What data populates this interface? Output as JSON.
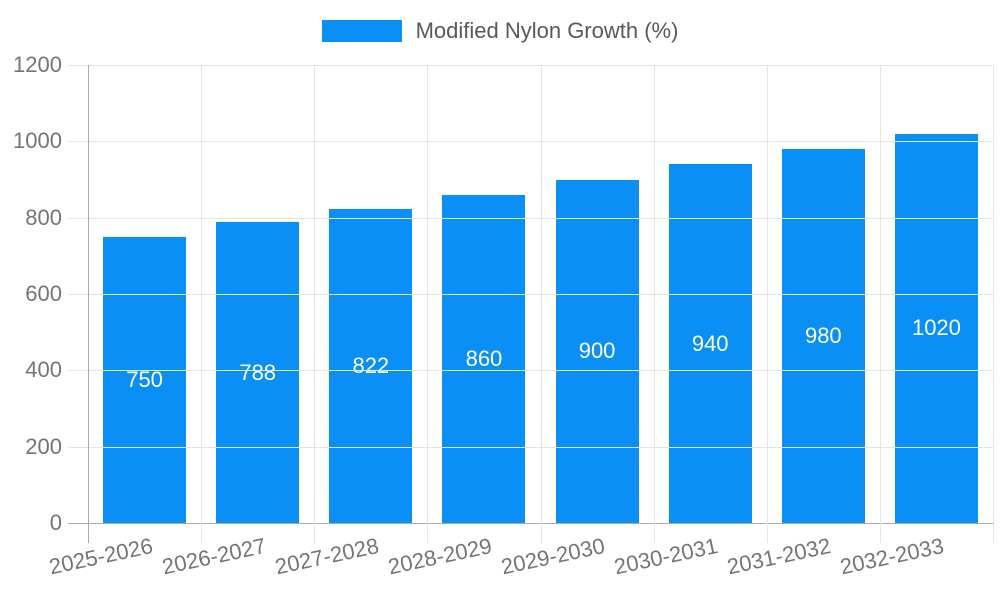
{
  "legend": {
    "label": "Modified Nylon Growth (%)"
  },
  "chart_data": {
    "type": "bar",
    "title": "",
    "categories": [
      "2025-2026",
      "2026-2027",
      "2027-2028",
      "2028-2029",
      "2029-2030",
      "2030-2031",
      "2031-2032",
      "2032-2033"
    ],
    "series": [
      {
        "name": "Modified Nylon Growth (%)",
        "values": [
          750,
          788,
          822,
          860,
          900,
          940,
          980,
          1020
        ]
      }
    ],
    "xlabel": "",
    "ylabel": "",
    "ylim": [
      0,
      1200
    ],
    "yticks": [
      0,
      200,
      400,
      600,
      800,
      1000,
      1200
    ],
    "grid": true,
    "legend_position": "top-center",
    "value_labels_position": "inside-center"
  },
  "colors": {
    "bar": "#0a8ff7",
    "grid": "#e5e5e5",
    "axis": "#ababab",
    "axis_text": "#757575",
    "legend_text": "#595959",
    "value_text": "#ffffff",
    "background": "#ffffff"
  }
}
